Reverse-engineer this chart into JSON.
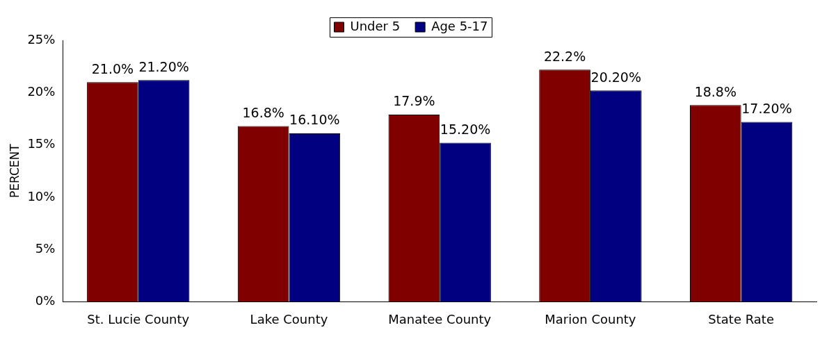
{
  "chart_data": {
    "type": "bar",
    "ylabel": "PERCENT",
    "categories": [
      "St. Lucie County",
      "Lake County",
      "Manatee County",
      "Marion County",
      "State Rate"
    ],
    "series": [
      {
        "name": "Under 5",
        "color": "#800000",
        "values": [
          21.0,
          16.8,
          17.9,
          22.2,
          18.8
        ],
        "value_labels": [
          "21.0%",
          "16.8%",
          "17.9%",
          "22.2%",
          "18.8%"
        ]
      },
      {
        "name": "Age 5-17",
        "color": "#000080",
        "values": [
          21.2,
          16.1,
          15.2,
          20.2,
          17.2
        ],
        "value_labels": [
          "21.20%",
          "16.10%",
          "15.20%",
          "20.20%",
          "17.20%"
        ]
      }
    ],
    "ylim": [
      0,
      25
    ],
    "yticks": [
      {
        "value": 0,
        "label": "0%"
      },
      {
        "value": 5,
        "label": "5%"
      },
      {
        "value": 10,
        "label": "10%"
      },
      {
        "value": 15,
        "label": "15%"
      },
      {
        "value": 20,
        "label": "20%"
      },
      {
        "value": 25,
        "label": "25%"
      }
    ],
    "grid": false,
    "legend": "top"
  }
}
